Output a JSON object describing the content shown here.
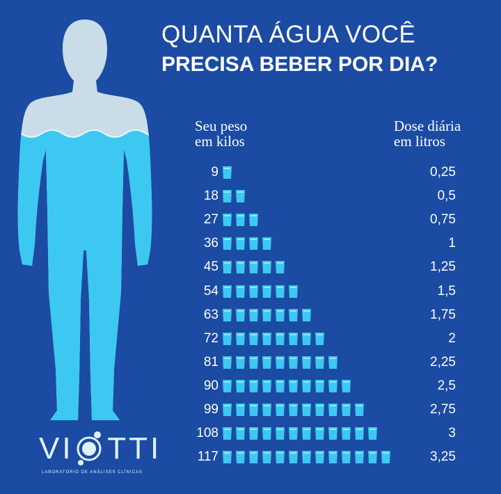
{
  "title": {
    "line1": "QUANTA ÁGUA VOCÊ",
    "line2": "PRECISA BEBER POR DIA?"
  },
  "headers": {
    "weight": [
      "Seu peso",
      "em kilos"
    ],
    "dose": [
      "Dose diária",
      "em litros"
    ]
  },
  "colors": {
    "background": "#1b4ba3",
    "water": "#3cc8f0",
    "body_top": "#c9dce8"
  },
  "icons": {
    "cup": "water-glass-icon",
    "figure": "human-body-water-icon"
  },
  "logo": {
    "name": "VIOTTI",
    "subtitle": "LABORATÓRIO DE ANÁLISES CLÍNICAS"
  },
  "chart_data": {
    "type": "bar",
    "title": "QUANTA ÁGUA VOCÊ PRECISA BEBER POR DIA?",
    "xlabel": "Seu peso em kilos",
    "ylabel": "Dose diária em litros",
    "categories": [
      "9",
      "18",
      "27",
      "36",
      "45",
      "54",
      "63",
      "72",
      "81",
      "90",
      "99",
      "108",
      "117"
    ],
    "values": [
      0.25,
      0.5,
      0.75,
      1,
      1.25,
      1.5,
      1.75,
      2,
      2.25,
      2.5,
      2.75,
      3,
      3.25
    ],
    "value_labels": [
      "0,25",
      "0,5",
      "0,75",
      "1",
      "1,25",
      "1,5",
      "1,75",
      "2",
      "2,25",
      "2,5",
      "2,75",
      "3",
      "3,25"
    ],
    "unit_per_glass": 0.25
  }
}
